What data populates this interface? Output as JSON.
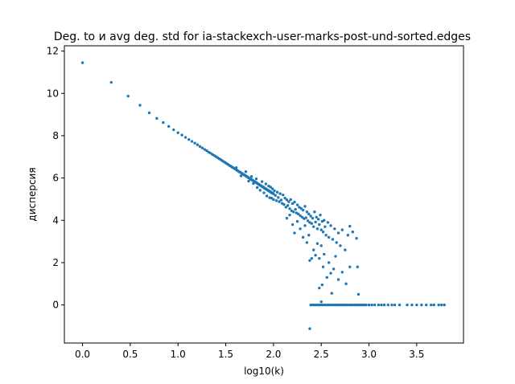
{
  "chart_data": {
    "type": "scatter",
    "title": "Deg. to и avg deg. std for ia-stackexch-user-marks-post-und-sorted.edges",
    "xlabel": "log10(k)",
    "ylabel": "дисперсия",
    "xlim": [
      -0.19,
      3.99
    ],
    "ylim": [
      -1.8,
      12.25
    ],
    "xticks": [
      0.0,
      0.5,
      1.0,
      1.5,
      2.0,
      2.5,
      3.0,
      3.5
    ],
    "xtick_labels": [
      "0.0",
      "0.5",
      "1.0",
      "1.5",
      "2.0",
      "2.5",
      "3.0",
      "3.5"
    ],
    "yticks": [
      0,
      2,
      4,
      6,
      8,
      10,
      12
    ],
    "ytick_labels": [
      "0",
      "2",
      "4",
      "6",
      "8",
      "10",
      "12"
    ],
    "grid": false,
    "legend": "none",
    "marker_color": "#1f77b4",
    "main_trend": [
      [
        0.0,
        11.45
      ],
      [
        0.301,
        10.52
      ],
      [
        0.477,
        9.87
      ],
      [
        0.602,
        9.44
      ],
      [
        0.699,
        9.08
      ],
      [
        0.778,
        8.82
      ],
      [
        0.845,
        8.62
      ],
      [
        0.903,
        8.44
      ],
      [
        0.954,
        8.28
      ],
      [
        1.0,
        8.14
      ],
      [
        1.041,
        8.03
      ],
      [
        1.079,
        7.92
      ],
      [
        1.114,
        7.82
      ],
      [
        1.146,
        7.73
      ],
      [
        1.176,
        7.65
      ],
      [
        1.204,
        7.57
      ],
      [
        1.23,
        7.49
      ],
      [
        1.255,
        7.42
      ],
      [
        1.279,
        7.35
      ],
      [
        1.301,
        7.29
      ],
      [
        1.322,
        7.22
      ],
      [
        1.342,
        7.17
      ],
      [
        1.362,
        7.11
      ],
      [
        1.38,
        7.06
      ],
      [
        1.398,
        7.01
      ],
      [
        1.415,
        6.96
      ],
      [
        1.431,
        6.91
      ],
      [
        1.447,
        6.87
      ],
      [
        1.462,
        6.82
      ],
      [
        1.477,
        6.78
      ],
      [
        1.491,
        6.74
      ],
      [
        1.505,
        6.7
      ],
      [
        1.518,
        6.66
      ],
      [
        1.531,
        6.62
      ],
      [
        1.544,
        6.58
      ],
      [
        1.556,
        6.55
      ],
      [
        1.568,
        6.51
      ],
      [
        1.58,
        6.48
      ],
      [
        1.591,
        6.45
      ],
      [
        1.602,
        6.42
      ],
      [
        1.613,
        6.38
      ],
      [
        1.623,
        6.35
      ],
      [
        1.633,
        6.32
      ],
      [
        1.643,
        6.29
      ],
      [
        1.653,
        6.27
      ],
      [
        1.663,
        6.24
      ],
      [
        1.672,
        6.21
      ],
      [
        1.681,
        6.18
      ],
      [
        1.69,
        6.16
      ],
      [
        1.699,
        6.13
      ],
      [
        1.708,
        6.11
      ],
      [
        1.716,
        6.08
      ],
      [
        1.724,
        6.06
      ],
      [
        1.732,
        6.03
      ],
      [
        1.74,
        6.01
      ],
      [
        1.748,
        5.99
      ],
      [
        1.756,
        5.96
      ],
      [
        1.763,
        5.94
      ],
      [
        1.771,
        5.92
      ],
      [
        1.778,
        5.9
      ],
      [
        1.785,
        5.88
      ],
      [
        1.792,
        5.86
      ],
      [
        1.799,
        5.84
      ],
      [
        1.806,
        5.82
      ],
      [
        1.813,
        5.8
      ],
      [
        1.82,
        5.78
      ],
      [
        1.826,
        5.76
      ],
      [
        1.833,
        5.74
      ],
      [
        1.839,
        5.72
      ],
      [
        1.845,
        5.7
      ],
      [
        1.851,
        5.69
      ],
      [
        1.857,
        5.67
      ],
      [
        1.863,
        5.65
      ],
      [
        1.869,
        5.63
      ],
      [
        1.875,
        5.62
      ],
      [
        1.881,
        5.6
      ],
      [
        1.886,
        5.58
      ],
      [
        1.892,
        5.57
      ],
      [
        1.898,
        5.55
      ],
      [
        1.903,
        5.53
      ],
      [
        1.908,
        5.52
      ],
      [
        1.914,
        5.5
      ],
      [
        1.919,
        5.49
      ],
      [
        1.924,
        5.47
      ],
      [
        1.929,
        5.46
      ],
      [
        1.934,
        5.44
      ],
      [
        1.94,
        5.43
      ],
      [
        1.944,
        5.41
      ],
      [
        1.949,
        5.4
      ],
      [
        1.954,
        5.39
      ],
      [
        1.959,
        5.37
      ],
      [
        1.964,
        5.36
      ],
      [
        1.968,
        5.34
      ],
      [
        1.973,
        5.33
      ],
      [
        1.978,
        5.32
      ],
      [
        1.982,
        5.3
      ],
      [
        1.987,
        5.29
      ],
      [
        1.991,
        5.28
      ],
      [
        1.996,
        5.27
      ],
      [
        2.0,
        5.25
      ]
    ],
    "main_scatter": [
      [
        1.61,
        6.49
      ],
      [
        1.66,
        6.1
      ],
      [
        1.71,
        6.3
      ],
      [
        1.74,
        5.85
      ],
      [
        1.77,
        6.07
      ],
      [
        1.79,
        5.74
      ],
      [
        1.82,
        5.96
      ],
      [
        1.83,
        5.55
      ],
      [
        1.86,
        5.42
      ],
      [
        1.88,
        5.83
      ],
      [
        1.9,
        5.3
      ],
      [
        1.92,
        5.72
      ],
      [
        1.93,
        5.15
      ],
      [
        1.95,
        5.62
      ],
      [
        1.96,
        5.07
      ],
      [
        1.97,
        5.57
      ],
      [
        1.98,
        5.05
      ],
      [
        1.99,
        5.49
      ],
      [
        2.0,
        4.98
      ],
      [
        2.01,
        5.4
      ],
      [
        2.02,
        5.18
      ],
      [
        2.03,
        4.93
      ],
      [
        2.04,
        5.33
      ],
      [
        2.05,
        5.08
      ],
      [
        2.06,
        4.88
      ],
      [
        2.07,
        5.26
      ],
      [
        2.08,
        4.96
      ],
      [
        2.09,
        4.8
      ],
      [
        2.1,
        5.2
      ],
      [
        2.11,
        4.75
      ],
      [
        2.12,
        5.05
      ],
      [
        2.13,
        4.62
      ],
      [
        2.14,
        4.97
      ],
      [
        2.15,
        4.7
      ],
      [
        2.16,
        4.88
      ],
      [
        2.17,
        4.55
      ],
      [
        2.18,
        4.98
      ],
      [
        2.19,
        4.45
      ],
      [
        2.2,
        4.79
      ],
      [
        2.21,
        4.4
      ],
      [
        2.22,
        4.86
      ],
      [
        2.23,
        4.52
      ],
      [
        2.24,
        4.35
      ],
      [
        2.25,
        4.73
      ],
      [
        2.26,
        4.3
      ],
      [
        2.27,
        4.62
      ],
      [
        2.28,
        4.22
      ],
      [
        2.29,
        4.56
      ],
      [
        2.3,
        4.15
      ],
      [
        2.31,
        4.48
      ],
      [
        2.32,
        4.08
      ],
      [
        2.33,
        4.66
      ],
      [
        2.34,
        4.12
      ],
      [
        2.35,
        4.4
      ],
      [
        2.36,
        3.98
      ],
      [
        2.37,
        4.3
      ],
      [
        2.38,
        3.9
      ],
      [
        2.39,
        4.2
      ],
      [
        2.4,
        3.85
      ],
      [
        2.41,
        4.1
      ],
      [
        2.42,
        3.7
      ],
      [
        2.43,
        4.4
      ],
      [
        2.44,
        3.92
      ],
      [
        2.45,
        4.15
      ],
      [
        2.46,
        3.6
      ],
      [
        2.47,
        4.05
      ],
      [
        2.48,
        3.8
      ],
      [
        2.49,
        4.25
      ],
      [
        2.5,
        3.55
      ],
      [
        2.51,
        3.95
      ],
      [
        2.52,
        3.45
      ],
      [
        2.53,
        4.0
      ],
      [
        2.54,
        3.7
      ],
      [
        2.55,
        3.3
      ],
      [
        2.57,
        3.9
      ],
      [
        2.58,
        3.2
      ],
      [
        2.6,
        3.75
      ],
      [
        2.62,
        3.1
      ],
      [
        2.64,
        3.6
      ],
      [
        2.66,
        2.95
      ],
      [
        2.68,
        3.4
      ],
      [
        2.7,
        2.8
      ],
      [
        2.72,
        3.55
      ],
      [
        2.75,
        2.6
      ],
      [
        2.78,
        3.3
      ],
      [
        2.8,
        3.72
      ],
      [
        2.83,
        3.45
      ],
      [
        2.87,
        3.15
      ],
      [
        2.14,
        4.1
      ],
      [
        2.17,
        4.25
      ],
      [
        2.2,
        3.8
      ],
      [
        2.22,
        3.4
      ],
      [
        2.25,
        3.95
      ],
      [
        2.28,
        3.6
      ],
      [
        2.31,
        3.2
      ],
      [
        2.33,
        3.75
      ],
      [
        2.35,
        2.95
      ],
      [
        2.37,
        3.3
      ],
      [
        2.38,
        2.1
      ],
      [
        2.4,
        2.2
      ],
      [
        2.42,
        2.6
      ],
      [
        2.44,
        2.35
      ],
      [
        2.46,
        2.9
      ],
      [
        2.48,
        2.2
      ],
      [
        2.5,
        2.8
      ],
      [
        2.52,
        1.8
      ],
      [
        2.53,
        2.4
      ],
      [
        2.56,
        1.3
      ],
      [
        2.58,
        2.0
      ],
      [
        2.6,
        1.5
      ],
      [
        2.63,
        1.7
      ],
      [
        2.65,
        2.3
      ],
      [
        2.68,
        1.2
      ],
      [
        2.72,
        1.55
      ],
      [
        2.76,
        1.0
      ],
      [
        2.8,
        1.8
      ],
      [
        2.88,
        1.8
      ],
      [
        2.48,
        0.8
      ],
      [
        2.51,
        0.95
      ],
      [
        2.61,
        0.55
      ],
      [
        2.89,
        0.5
      ],
      [
        2.5,
        0.15
      ]
    ],
    "zero_band_x": [
      2.39,
      2.41,
      2.43,
      2.45,
      2.47,
      2.49,
      2.51,
      2.53,
      2.55,
      2.57,
      2.59,
      2.61,
      2.63,
      2.65,
      2.67,
      2.69,
      2.71,
      2.73,
      2.75,
      2.77,
      2.79,
      2.81,
      2.83,
      2.85,
      2.87,
      2.89,
      2.91,
      2.93,
      2.95,
      2.97,
      3.0,
      3.03,
      3.06,
      3.1,
      3.13,
      3.16,
      3.2,
      3.24,
      3.27,
      3.32,
      3.4,
      3.45,
      3.5,
      3.55,
      3.6,
      3.65,
      3.68,
      3.73,
      3.76,
      3.79
    ],
    "outliers": [
      [
        2.38,
        -1.12
      ]
    ]
  }
}
